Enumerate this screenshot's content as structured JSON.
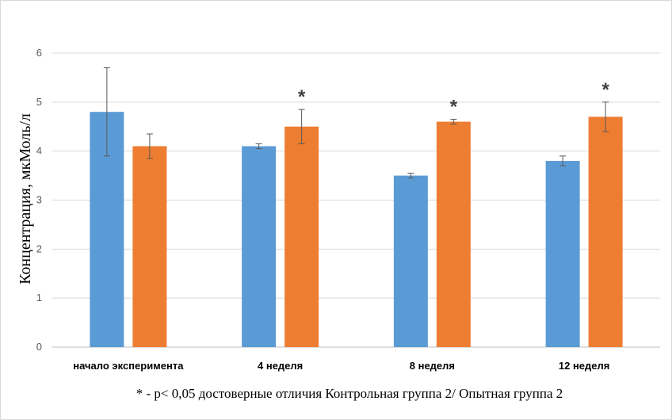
{
  "chart_data": {
    "type": "bar",
    "categories": [
      "начало эксперимента",
      "4 неделя",
      "8 неделя",
      "12 неделя"
    ],
    "series": [
      {
        "values": [
          4.8,
          4.1,
          3.5,
          3.8
        ],
        "errors": [
          0.9,
          0.05,
          0.05,
          0.1
        ],
        "color": "#5b9bd5"
      },
      {
        "values": [
          4.1,
          4.5,
          4.6,
          4.7
        ],
        "errors": [
          0.25,
          0.35,
          0.05,
          0.3
        ],
        "color": "#ed7d31"
      }
    ],
    "significance_marks": [
      "",
      "*",
      "*",
      "*"
    ],
    "ylabel": "Концентрация, мкМоль/л",
    "xlabel": "",
    "ylim": [
      0,
      6
    ],
    "yticks": [
      "0",
      "1",
      "2",
      "3",
      "4",
      "5",
      "6"
    ],
    "grid": true,
    "footnote": "* - p< 0,05 достоверные отличия Контрольная группа 2/ Опытная группа 2"
  }
}
